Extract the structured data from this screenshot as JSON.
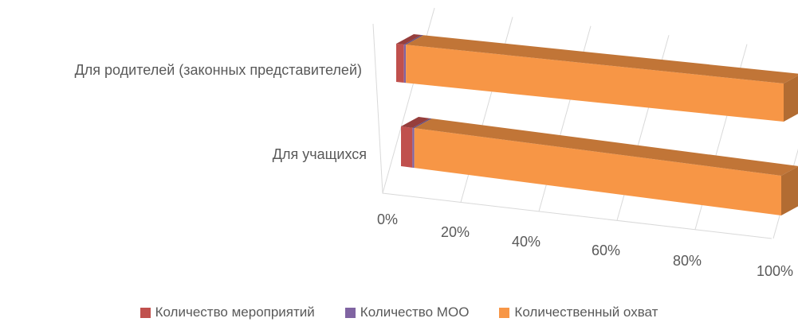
{
  "chart_data": {
    "type": "bar",
    "orientation": "horizontal",
    "stacking": "percent",
    "three_d": true,
    "categories": [
      "Для учащихся",
      "Для родителей (законных представителей)"
    ],
    "series": [
      {
        "name": "Количество мероприятий",
        "values": [
          3,
          2
        ],
        "color": "#c0504d"
      },
      {
        "name": "Количество МОО",
        "values": [
          0.5,
          0.5
        ],
        "color": "#8064a2"
      },
      {
        "name": "Количественный охват",
        "values": [
          96.5,
          97.5
        ],
        "color": "#f79646"
      }
    ],
    "x_ticks": [
      "0%",
      "20%",
      "40%",
      "60%",
      "80%",
      "100%"
    ],
    "xlim": [
      0,
      100
    ],
    "grid": true,
    "legend_position": "bottom"
  }
}
